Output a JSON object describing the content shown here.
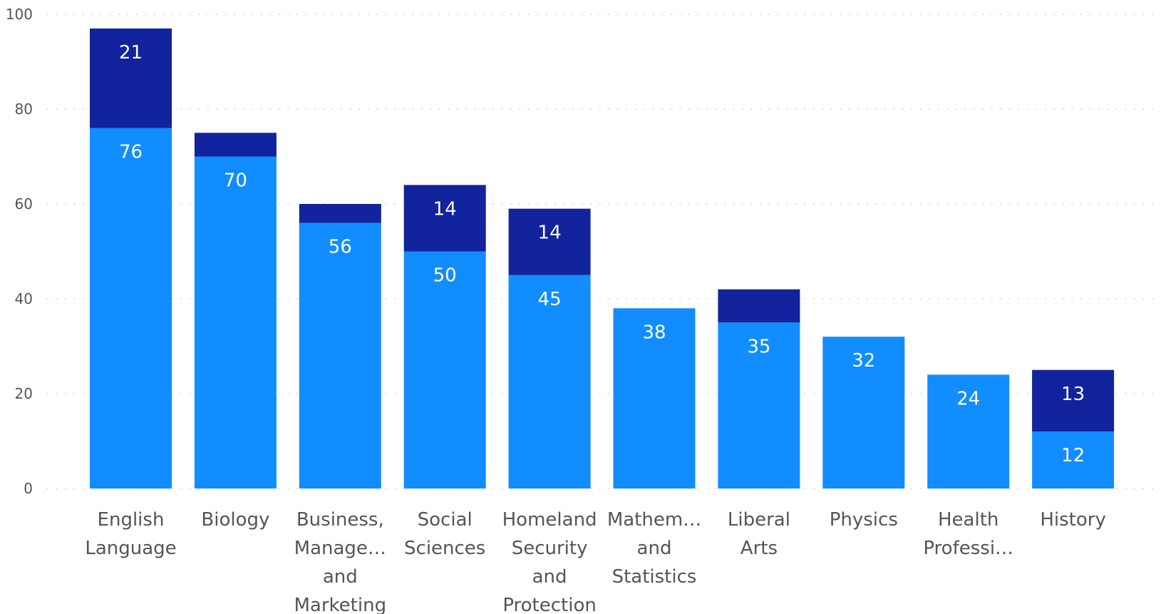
{
  "chart_data": {
    "type": "bar",
    "stacked": true,
    "title": "",
    "xlabel": "",
    "ylabel": "",
    "ylim": [
      0,
      100
    ],
    "yticks": [
      0,
      20,
      40,
      60,
      80,
      100
    ],
    "grid": true,
    "legend": "none",
    "categories": [
      [
        "English",
        "Language"
      ],
      [
        "Biology"
      ],
      [
        "Business,",
        "Manage…",
        "and",
        "Marketing"
      ],
      [
        "Social",
        "Sciences"
      ],
      [
        "Homeland",
        "Security",
        "and",
        "Protection"
      ],
      [
        "Mathem…",
        "and",
        "Statistics"
      ],
      [
        "Liberal",
        "Arts"
      ],
      [
        "Physics"
      ],
      [
        "Health",
        "Professi…"
      ],
      [
        "History"
      ]
    ],
    "series": [
      {
        "color": "#118dff",
        "values": [
          76,
          70,
          56,
          50,
          45,
          38,
          35,
          32,
          24,
          12
        ],
        "labels": [
          "76",
          "70",
          "56",
          "50",
          "45",
          "38",
          "35",
          "32",
          "24",
          "12"
        ]
      },
      {
        "color": "#12239e",
        "values": [
          21,
          5,
          4,
          14,
          14,
          0,
          7,
          0,
          0,
          13
        ],
        "labels": [
          "21",
          "",
          "",
          "14",
          "14",
          "",
          "",
          "",
          "",
          "13"
        ]
      }
    ]
  }
}
